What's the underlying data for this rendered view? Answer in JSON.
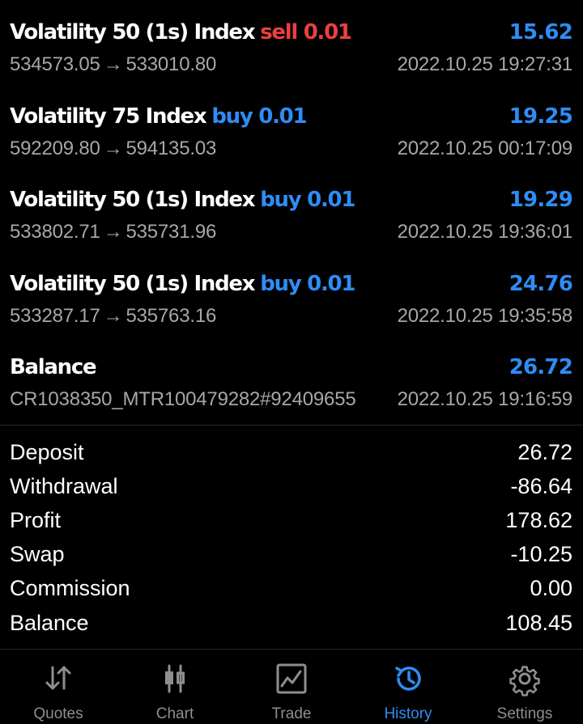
{
  "trades": [
    {
      "symbol": "Volatility 50 (1s) Index",
      "type": "sell 0.01",
      "side": "sell",
      "amount": "15.62",
      "open": "534573.05",
      "close": "533010.80",
      "time": "2022.10.25 19:27:31"
    },
    {
      "symbol": "Volatility 75 Index",
      "type": "buy 0.01",
      "side": "buy",
      "amount": "19.25",
      "open": "592209.80",
      "close": "594135.03",
      "time": "2022.10.25 00:17:09"
    },
    {
      "symbol": "Volatility 50 (1s) Index",
      "type": "buy 0.01",
      "side": "buy",
      "amount": "19.29",
      "open": "533802.71",
      "close": "535731.96",
      "time": "2022.10.25 19:36:01"
    },
    {
      "symbol": "Volatility 50 (1s) Index",
      "type": "buy 0.01",
      "side": "buy",
      "amount": "24.76",
      "open": "533287.17",
      "close": "535763.16",
      "time": "2022.10.25 19:35:58"
    }
  ],
  "arrow": "→",
  "balance_entry": {
    "label": "Balance",
    "amount": "26.72",
    "ref": "CR1038350_MTR100479282#92409655",
    "time": "2022.10.25 19:16:59"
  },
  "summary": [
    {
      "label": "Deposit",
      "value": "26.72"
    },
    {
      "label": "Withdrawal",
      "value": "-86.64"
    },
    {
      "label": "Profit",
      "value": "178.62"
    },
    {
      "label": "Swap",
      "value": "-10.25"
    },
    {
      "label": "Commission",
      "value": "0.00"
    },
    {
      "label": "Balance",
      "value": "108.45"
    }
  ],
  "tabs": [
    {
      "label": "Quotes",
      "icon": "quotes-arrows-icon"
    },
    {
      "label": "Chart",
      "icon": "candlestick-icon"
    },
    {
      "label": "Trade",
      "icon": "trade-chart-icon"
    },
    {
      "label": "History",
      "icon": "history-clock-icon",
      "active": true
    },
    {
      "label": "Settings",
      "icon": "gear-icon"
    }
  ],
  "colors": {
    "background": "#000000",
    "sell": "#e8413c",
    "buy": "#2f8cf5",
    "secondary_text": "#a7a7ab",
    "tab_inactive": "#8e8e93"
  }
}
